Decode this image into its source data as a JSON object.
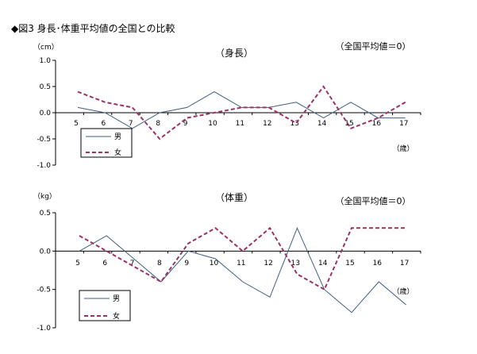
{
  "figure_title": "◆図3 身長･体重平均値の全国との比較",
  "chart_data": [
    {
      "type": "line",
      "title": "（身長）",
      "note": "（全国平均値＝0）",
      "ylabel": "（cm）",
      "xunit": "（歳）",
      "categories": [
        "5",
        "6",
        "7",
        "8",
        "9",
        "10",
        "11",
        "12",
        "13",
        "14",
        "15",
        "16",
        "17"
      ],
      "ylim": [
        -1.0,
        1.0
      ],
      "yticks": [
        1.0,
        0.5,
        0.0,
        -0.5,
        -1.0
      ],
      "ytick_labels": [
        "1.0",
        "0.5",
        "0.0",
        "-0.5",
        "-1.0"
      ],
      "grid": false,
      "legend_position": "bottom-left",
      "series": [
        {
          "name": "男",
          "color": "#3f5e80",
          "dash": "solid",
          "values": [
            0.1,
            0.0,
            -0.3,
            0.0,
            0.1,
            0.4,
            0.1,
            0.1,
            0.2,
            -0.1,
            0.2,
            -0.1,
            -0.1
          ]
        },
        {
          "name": "女",
          "color": "#993366",
          "dash": "dashed",
          "values": [
            0.4,
            0.2,
            0.1,
            -0.5,
            -0.1,
            0.0,
            0.1,
            0.1,
            -0.2,
            0.5,
            -0.3,
            -0.1,
            0.2
          ]
        }
      ]
    },
    {
      "type": "line",
      "title": "（体重）",
      "note": "（全国平均値＝0）",
      "ylabel": "（kg）",
      "xunit": "（歳）",
      "categories": [
        "5",
        "6",
        "7",
        "8",
        "9",
        "10",
        "11",
        "12",
        "13",
        "14",
        "15",
        "16",
        "17"
      ],
      "ylim": [
        -1.0,
        0.5
      ],
      "yticks": [
        0.5,
        0.0,
        -0.5,
        -1.0
      ],
      "ytick_labels": [
        "0.5",
        "0.0",
        "-0.5",
        "-1.0"
      ],
      "grid": false,
      "legend_position": "bottom-left",
      "series": [
        {
          "name": "男",
          "color": "#3f5e80",
          "dash": "solid",
          "values": [
            0.0,
            0.2,
            -0.1,
            -0.4,
            0.0,
            -0.1,
            -0.4,
            -0.6,
            0.3,
            -0.5,
            -0.8,
            -0.4,
            -0.7
          ]
        },
        {
          "name": "女",
          "color": "#993366",
          "dash": "dashed",
          "values": [
            0.2,
            0.0,
            -0.2,
            -0.4,
            0.1,
            0.3,
            0.0,
            0.3,
            -0.3,
            -0.5,
            0.3,
            0.3,
            0.3
          ]
        }
      ]
    }
  ]
}
